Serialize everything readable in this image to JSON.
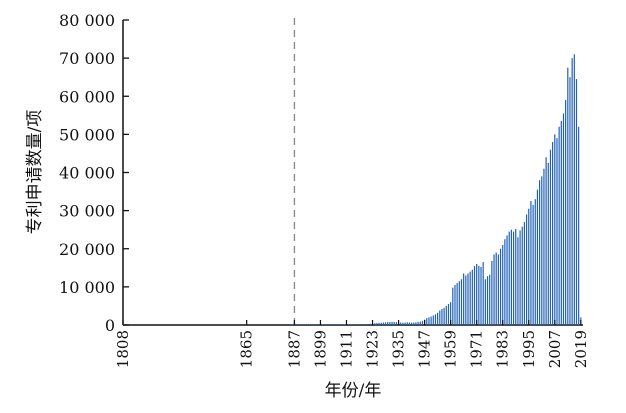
{
  "chart_data": {
    "type": "bar",
    "title": "",
    "xlabel": "年份/年",
    "ylabel": "专利申请数量/项",
    "ylim": [
      0,
      80000
    ],
    "xlim": [
      1808,
      2020
    ],
    "y_ticks": [
      0,
      10000,
      20000,
      30000,
      40000,
      50000,
      60000,
      70000,
      80000
    ],
    "y_tick_labels": [
      "0",
      "10 000",
      "20 000",
      "30 000",
      "40 000",
      "50 000",
      "60 000",
      "70 000",
      "80 000"
    ],
    "x_tick_labels": [
      "1808",
      "1865",
      "1887",
      "1899",
      "1911",
      "1923",
      "1935",
      "1947",
      "1959",
      "1971",
      "1983",
      "1995",
      "2007",
      "2019"
    ],
    "reference_line": {
      "x": 1887,
      "style": "dashed"
    },
    "grid": false,
    "series": [
      {
        "color": "#1f5fb5",
        "x": [
          1885,
          1886,
          1887,
          1888,
          1889,
          1890,
          1891,
          1892,
          1893,
          1894,
          1895,
          1896,
          1897,
          1898,
          1899,
          1900,
          1901,
          1902,
          1903,
          1904,
          1905,
          1906,
          1907,
          1908,
          1909,
          1910,
          1911,
          1912,
          1913,
          1914,
          1915,
          1916,
          1917,
          1918,
          1919,
          1920,
          1921,
          1922,
          1923,
          1924,
          1925,
          1926,
          1927,
          1928,
          1929,
          1930,
          1931,
          1932,
          1933,
          1934,
          1935,
          1936,
          1937,
          1938,
          1939,
          1940,
          1941,
          1942,
          1943,
          1944,
          1945,
          1946,
          1947,
          1948,
          1949,
          1950,
          1951,
          1952,
          1953,
          1954,
          1955,
          1956,
          1957,
          1958,
          1959,
          1960,
          1961,
          1962,
          1963,
          1964,
          1965,
          1966,
          1967,
          1968,
          1969,
          1970,
          1971,
          1972,
          1973,
          1974,
          1975,
          1976,
          1977,
          1978,
          1979,
          1980,
          1981,
          1982,
          1983,
          1984,
          1985,
          1986,
          1987,
          1988,
          1989,
          1990,
          1991,
          1992,
          1993,
          1994,
          1995,
          1996,
          1997,
          1998,
          1999,
          2000,
          2001,
          2002,
          2003,
          2004,
          2005,
          2006,
          2007,
          2008,
          2009,
          2010,
          2011,
          2012,
          2013,
          2014,
          2015,
          2016,
          2017,
          2018,
          2019
        ],
        "values": [
          120,
          130,
          140,
          120,
          110,
          100,
          110,
          120,
          110,
          100,
          110,
          120,
          100,
          100,
          110,
          120,
          100,
          100,
          110,
          120,
          100,
          110,
          120,
          100,
          110,
          100,
          110,
          120,
          100,
          110,
          100,
          110,
          100,
          120,
          150,
          200,
          260,
          320,
          400,
          450,
          500,
          550,
          600,
          650,
          700,
          750,
          800,
          850,
          800,
          750,
          700,
          650,
          600,
          650,
          700,
          650,
          600,
          650,
          700,
          800,
          900,
          1100,
          1400,
          1800,
          2000,
          2200,
          2500,
          2800,
          3200,
          3800,
          4200,
          4500,
          5000,
          5500,
          6000,
          9800,
          10500,
          11000,
          11500,
          12000,
          13500,
          13000,
          13500,
          14000,
          14500,
          15500,
          16000,
          15500,
          15200,
          16500,
          12000,
          12800,
          13200,
          16800,
          18500,
          19000,
          18500,
          20000,
          21000,
          22500,
          23500,
          24500,
          25000,
          24500,
          25200,
          23000,
          24800,
          25800,
          27000,
          29000,
          30500,
          32500,
          31500,
          33000,
          35500,
          38000,
          39000,
          41000,
          44000,
          42500,
          46000,
          48000,
          50000,
          49000,
          52000,
          53500,
          55500,
          59000,
          67500,
          65000,
          70000,
          71000,
          64500,
          52000,
          2000
        ]
      }
    ]
  }
}
